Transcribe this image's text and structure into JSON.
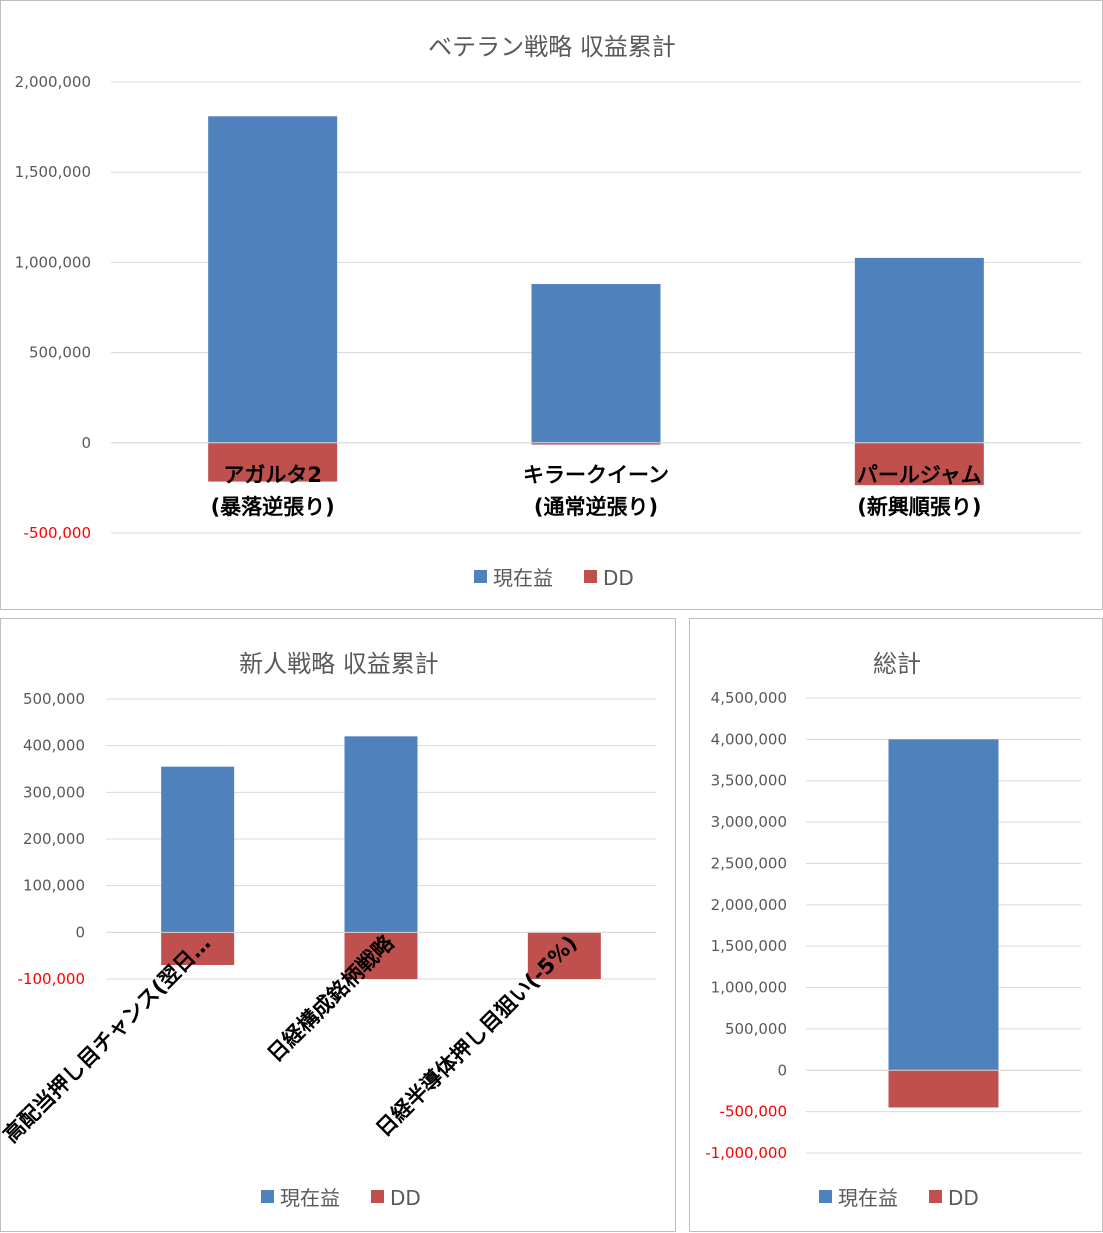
{
  "colors": {
    "profit": "#4f81bd",
    "dd": "#c0504d",
    "grid": "#d9d9d9",
    "text": "#595959",
    "negative_tick": "#ff0000"
  },
  "legend": {
    "profit_label": "現在益",
    "dd_label": "DD"
  },
  "chart_data": [
    {
      "type": "bar",
      "stacked": true,
      "title": "ベテラン戦略 収益累計",
      "categories": [
        "アガルタ2\n(暴落逆張り)",
        "キラークイーン\n(通常逆張り)",
        "パールジャム\n(新興順張り)"
      ],
      "series": [
        {
          "name": "現在益",
          "values": [
            1810000,
            880000,
            1025000
          ]
        },
        {
          "name": "DD",
          "values": [
            -215000,
            -10000,
            -235000
          ]
        }
      ],
      "ylim": [
        -500000,
        2000000
      ],
      "yticks": [
        -500000,
        0,
        500000,
        1000000,
        1500000,
        2000000
      ],
      "ytick_labels": [
        "-500,000",
        "0",
        "500,000",
        "1,000,000",
        "1,500,000",
        "2,000,000"
      ],
      "grid": true,
      "legend_position": "bottom"
    },
    {
      "type": "bar",
      "stacked": true,
      "title": "新人戦略 収益累計",
      "categories": [
        "高配当押し目チャンス(翌日…",
        "日経構成銘柄戦略",
        "日経半導体押し目狙い(-5%)"
      ],
      "series": [
        {
          "name": "現在益",
          "values": [
            355000,
            420000,
            0
          ]
        },
        {
          "name": "DD",
          "values": [
            -70000,
            -100000,
            -100000
          ]
        }
      ],
      "ylim": [
        -100000,
        500000
      ],
      "yticks": [
        -100000,
        0,
        100000,
        200000,
        300000,
        400000,
        500000
      ],
      "ytick_labels": [
        "-100,000",
        "0",
        "100,000",
        "200,000",
        "300,000",
        "400,000",
        "500,000"
      ],
      "grid": true,
      "legend_position": "bottom"
    },
    {
      "type": "bar",
      "stacked": true,
      "title": "総計",
      "categories": [
        ""
      ],
      "series": [
        {
          "name": "現在益",
          "values": [
            4000000
          ]
        },
        {
          "name": "DD",
          "values": [
            -450000
          ]
        }
      ],
      "ylim": [
        -1000000,
        4500000
      ],
      "yticks": [
        -1000000,
        -500000,
        0,
        500000,
        1000000,
        1500000,
        2000000,
        2500000,
        3000000,
        3500000,
        4000000,
        4500000
      ],
      "ytick_labels": [
        "-1,000,000",
        "-500,000",
        "0",
        "500,000",
        "1,000,000",
        "1,500,000",
        "2,000,000",
        "2,500,000",
        "3,000,000",
        "3,500,000",
        "4,000,000",
        "4,500,000"
      ],
      "grid": true,
      "legend_position": "bottom"
    }
  ]
}
